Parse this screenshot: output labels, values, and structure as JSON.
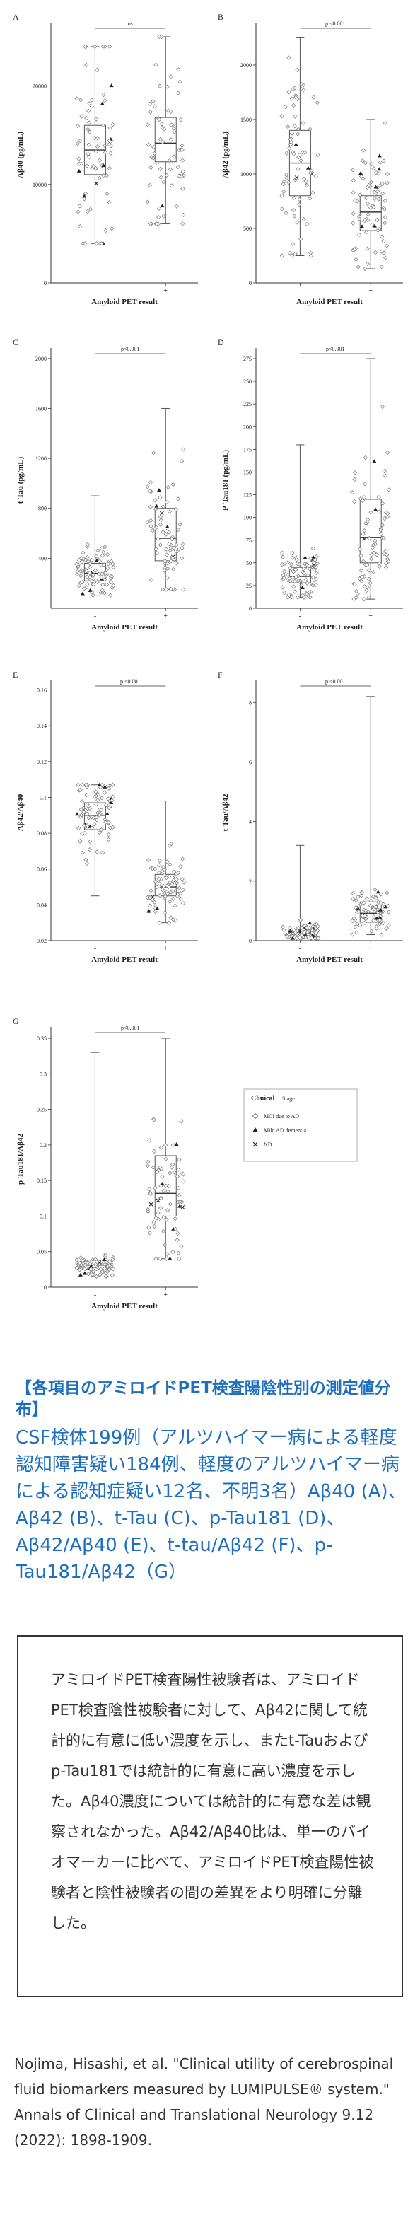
{
  "chart_data": [
    {
      "type": "box-scatter",
      "panel": "A",
      "ylabel": "Aβ40 (pg/mL)",
      "xlabel": "Amyloid PET result",
      "categories": [
        "-",
        "+"
      ],
      "sig": "ns",
      "ylim": [
        0,
        30000
      ],
      "ticks": [
        0,
        10000,
        20000
      ],
      "groups": [
        {
          "name": "-",
          "q1": 11000,
          "median": 13500,
          "q3": 16000,
          "wlo": 4000,
          "whi": 24000,
          "spread": 6000,
          "n": 80
        },
        {
          "name": "+",
          "q1": 12300,
          "median": 14200,
          "q3": 16800,
          "wlo": 6000,
          "whi": 25000,
          "spread": 5000,
          "n": 70
        }
      ]
    },
    {
      "type": "box-scatter",
      "panel": "B",
      "ylabel": "Aβ42 (pg/mL)",
      "xlabel": "Amyloid PET result",
      "categories": [
        "-",
        "+"
      ],
      "sig": "p <0.001",
      "ylim": [
        0,
        2500
      ],
      "ticks": [
        0,
        500,
        1000,
        1500,
        2000
      ],
      "groups": [
        {
          "name": "-",
          "q1": 800,
          "median": 1100,
          "q3": 1400,
          "wlo": 250,
          "whi": 2250,
          "spread": 500,
          "n": 80
        },
        {
          "name": "+",
          "q1": 480,
          "median": 650,
          "q3": 800,
          "wlo": 130,
          "whi": 1500,
          "spread": 300,
          "n": 80
        }
      ]
    },
    {
      "type": "box-scatter",
      "panel": "C",
      "ylabel": "t-Tau (pg/mL)",
      "xlabel": "Amyloid PET result",
      "categories": [
        "-",
        "+"
      ],
      "sig": "p<0.001",
      "ylim": [
        0,
        2100
      ],
      "ticks": [
        400,
        800,
        1200,
        1600,
        2000
      ],
      "groups": [
        {
          "name": "-",
          "q1": 220,
          "median": 280,
          "q3": 360,
          "wlo": 100,
          "whi": 900,
          "spread": 100,
          "n": 90
        },
        {
          "name": "+",
          "q1": 380,
          "median": 560,
          "q3": 800,
          "wlo": 150,
          "whi": 1600,
          "spread": 280,
          "n": 80
        }
      ]
    },
    {
      "type": "box-scatter",
      "panel": "D",
      "ylabel": "P-Tau181 (pg/mL)",
      "xlabel": "Amyloid PET result",
      "categories": [
        "-",
        "+"
      ],
      "sig": "p<0.001",
      "ylim": [
        0,
        280
      ],
      "ticks": [
        0,
        25,
        50,
        75,
        100,
        125,
        150,
        175,
        200,
        225,
        250,
        275
      ],
      "groups": [
        {
          "name": "-",
          "q1": 28,
          "median": 35,
          "q3": 45,
          "wlo": 12,
          "whi": 180,
          "spread": 14,
          "n": 90
        },
        {
          "name": "+",
          "q1": 50,
          "median": 78,
          "q3": 120,
          "wlo": 10,
          "whi": 275,
          "spread": 45,
          "n": 80
        }
      ]
    },
    {
      "type": "box-scatter",
      "panel": "E",
      "ylabel": "Aβ42/Aβ40",
      "xlabel": "Amyloid PET result",
      "categories": [
        "-",
        "+"
      ],
      "sig": "p <0.001",
      "ylim": [
        0.02,
        0.16
      ],
      "ticks": [
        0.02,
        0.04,
        0.06,
        0.08,
        0.1,
        0.12,
        0.14,
        0.16
      ],
      "groups": [
        {
          "name": "-",
          "q1": 0.082,
          "median": 0.09,
          "q3": 0.097,
          "wlo": 0.045,
          "whi": 0.107,
          "spread": 0.012,
          "n": 90
        },
        {
          "name": "+",
          "q1": 0.045,
          "median": 0.05,
          "q3": 0.057,
          "wlo": 0.03,
          "whi": 0.098,
          "spread": 0.01,
          "n": 80
        }
      ]
    },
    {
      "type": "box-scatter",
      "panel": "F",
      "ylabel": "t-Tau/Aβ42",
      "xlabel": "Amyloid PET result",
      "categories": [
        "-",
        "+"
      ],
      "sig": "p <0.001",
      "ylim": [
        0,
        8.5
      ],
      "ticks": [
        0,
        2,
        4,
        6,
        8
      ],
      "groups": [
        {
          "name": "-",
          "q1": 0.2,
          "median": 0.26,
          "q3": 0.36,
          "wlo": 0.08,
          "whi": 3.2,
          "spread": 0.15,
          "n": 90
        },
        {
          "name": "+",
          "q1": 0.62,
          "median": 0.92,
          "q3": 1.3,
          "wlo": 0.2,
          "whi": 8.2,
          "spread": 0.4,
          "n": 80
        }
      ]
    },
    {
      "type": "box-scatter",
      "panel": "G",
      "ylabel": "p-Tau181/Aβ42",
      "xlabel": "Amyloid PET result",
      "categories": [
        "-",
        "+"
      ],
      "sig": "p<0.001",
      "ylim": [
        0,
        0.36
      ],
      "ticks": [
        0,
        0.05,
        0.1,
        0.15,
        0.2,
        0.25,
        0.3,
        0.35
      ],
      "groups": [
        {
          "name": "-",
          "q1": 0.025,
          "median": 0.031,
          "q3": 0.038,
          "wlo": 0.015,
          "whi": 0.33,
          "spread": 0.008,
          "n": 90
        },
        {
          "name": "+",
          "q1": 0.1,
          "median": 0.132,
          "q3": 0.185,
          "wlo": 0.04,
          "whi": 0.35,
          "spread": 0.05,
          "n": 80
        }
      ]
    }
  ],
  "legend": {
    "title": "Clinical",
    "subtitle": "Stage",
    "items": [
      {
        "symbol": "diamond",
        "label": "MCI due to AD"
      },
      {
        "symbol": "triangle",
        "label": "Mild AD dementia"
      },
      {
        "symbol": "cross",
        "label": "ND"
      }
    ]
  },
  "caption": {
    "heading": "【各項目のアミロイドPET検査陽陰性別の測定値分布】",
    "body": "CSF検体199例（アルツハイマー病による軽度認知障害疑い184例、軽度のアルツハイマー病による認知症疑い12名、不明3名）Aβ40 (A)、Aβ42 (B)、t-Tau (C)、p-Tau181 (D)、Aβ42/Aβ40 (E)、t-tau/Aβ42 (F)、p-Tau181/Aβ42（G）"
  },
  "summary": "アミロイドPET検査陽性被験者は、アミロイドPET検査陰性被験者に対して、Aβ42に関して統計的に有意に低い濃度を示し、またt-Tauおよびp-Tau181では統計的に有意に高い濃度を示した。Aβ40濃度については統計的に有意な差は観察されなかった。Aβ42/Aβ40比は、単一のバイオマーカーに比べて、アミロイドPET検査陽性被験者と陰性被験者の間の差異をより明確に分離した。",
  "citation": {
    "line1": "Nojima, Hisashi, et al. \"Clinical utility of cerebrospinal fluid biomarkers measured by LUMIPULSE® system.\"",
    "line2": "Annals of Clinical and Translational Neurology 9.12 (2022): 1898-1909."
  }
}
